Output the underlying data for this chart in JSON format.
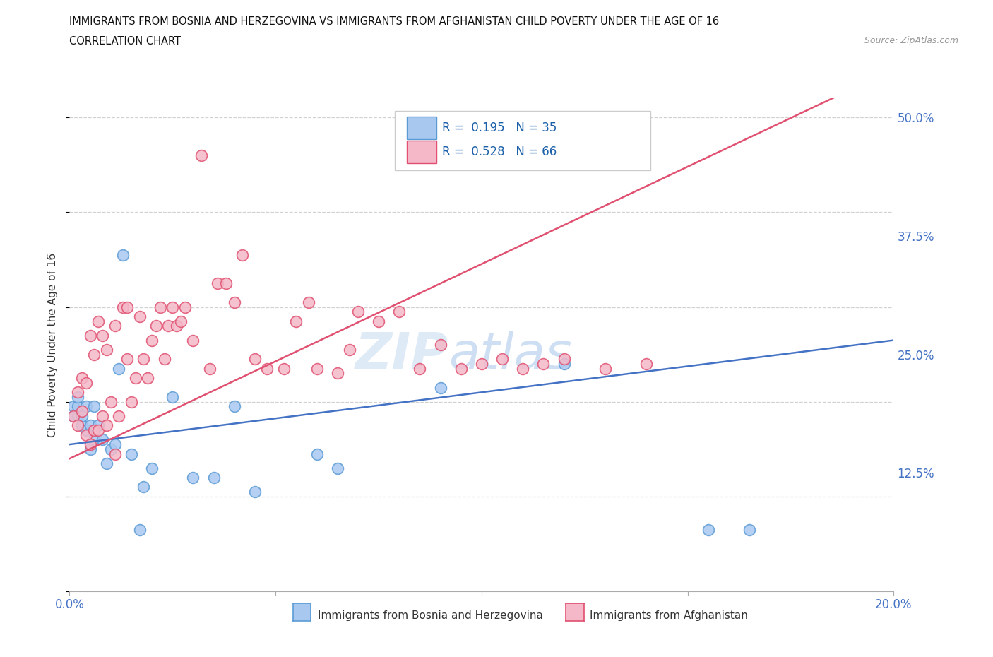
{
  "title_line1": "IMMIGRANTS FROM BOSNIA AND HERZEGOVINA VS IMMIGRANTS FROM AFGHANISTAN CHILD POVERTY UNDER THE AGE OF 16",
  "title_line2": "CORRELATION CHART",
  "source": "Source: ZipAtlas.com",
  "ylabel": "Child Poverty Under the Age of 16",
  "xlim": [
    0.0,
    0.2
  ],
  "ylim": [
    0.0,
    0.52
  ],
  "ytick_values": [
    0.0,
    0.125,
    0.25,
    0.375,
    0.5
  ],
  "ytick_labels": [
    "",
    "12.5%",
    "25.0%",
    "37.5%",
    "50.0%"
  ],
  "xtick_values": [
    0.0,
    0.05,
    0.1,
    0.15,
    0.2
  ],
  "xtick_labels": [
    "0.0%",
    "",
    "",
    "",
    "20.0%"
  ],
  "legend_label1": "Immigrants from Bosnia and Herzegovina",
  "legend_label2": "Immigrants from Afghanistan",
  "R1": 0.195,
  "N1": 35,
  "R2": 0.528,
  "N2": 66,
  "color_bosnia": "#a8c8f0",
  "color_bosnia_edge": "#5b9bd5",
  "color_afghanistan": "#f4b8c8",
  "color_afghanistan_edge": "#e05070",
  "color_bosnia_line": "#4472c4",
  "color_afghanistan_line": "#e05070",
  "watermark_zip": "ZIP",
  "watermark_atlas": "atlas",
  "bosnia_x": [
    0.001,
    0.001,
    0.002,
    0.002,
    0.002,
    0.003,
    0.003,
    0.004,
    0.004,
    0.005,
    0.005,
    0.006,
    0.006,
    0.007,
    0.008,
    0.009,
    0.01,
    0.011,
    0.012,
    0.013,
    0.015,
    0.017,
    0.018,
    0.02,
    0.025,
    0.03,
    0.035,
    0.04,
    0.045,
    0.06,
    0.065,
    0.09,
    0.12,
    0.155,
    0.165
  ],
  "bosnia_y": [
    0.185,
    0.195,
    0.185,
    0.195,
    0.205,
    0.175,
    0.185,
    0.17,
    0.195,
    0.15,
    0.175,
    0.16,
    0.195,
    0.175,
    0.16,
    0.135,
    0.15,
    0.155,
    0.235,
    0.355,
    0.145,
    0.065,
    0.11,
    0.13,
    0.205,
    0.12,
    0.12,
    0.195,
    0.105,
    0.145,
    0.13,
    0.215,
    0.24,
    0.065,
    0.065
  ],
  "afghanistan_x": [
    0.001,
    0.002,
    0.002,
    0.003,
    0.003,
    0.004,
    0.004,
    0.005,
    0.005,
    0.006,
    0.006,
    0.007,
    0.007,
    0.008,
    0.008,
    0.009,
    0.009,
    0.01,
    0.011,
    0.011,
    0.012,
    0.013,
    0.014,
    0.014,
    0.015,
    0.016,
    0.017,
    0.018,
    0.019,
    0.02,
    0.021,
    0.022,
    0.023,
    0.024,
    0.025,
    0.026,
    0.027,
    0.028,
    0.03,
    0.032,
    0.034,
    0.036,
    0.038,
    0.04,
    0.042,
    0.045,
    0.048,
    0.052,
    0.055,
    0.058,
    0.06,
    0.065,
    0.068,
    0.07,
    0.075,
    0.08,
    0.085,
    0.09,
    0.095,
    0.1,
    0.105,
    0.11,
    0.115,
    0.12,
    0.13,
    0.14
  ],
  "afghanistan_y": [
    0.185,
    0.175,
    0.21,
    0.19,
    0.225,
    0.165,
    0.22,
    0.155,
    0.27,
    0.17,
    0.25,
    0.17,
    0.285,
    0.185,
    0.27,
    0.175,
    0.255,
    0.2,
    0.145,
    0.28,
    0.185,
    0.3,
    0.245,
    0.3,
    0.2,
    0.225,
    0.29,
    0.245,
    0.225,
    0.265,
    0.28,
    0.3,
    0.245,
    0.28,
    0.3,
    0.28,
    0.285,
    0.3,
    0.265,
    0.46,
    0.235,
    0.325,
    0.325,
    0.305,
    0.355,
    0.245,
    0.235,
    0.235,
    0.285,
    0.305,
    0.235,
    0.23,
    0.255,
    0.295,
    0.285,
    0.295,
    0.235,
    0.26,
    0.235,
    0.24,
    0.245,
    0.235,
    0.24,
    0.245,
    0.235,
    0.24
  ]
}
